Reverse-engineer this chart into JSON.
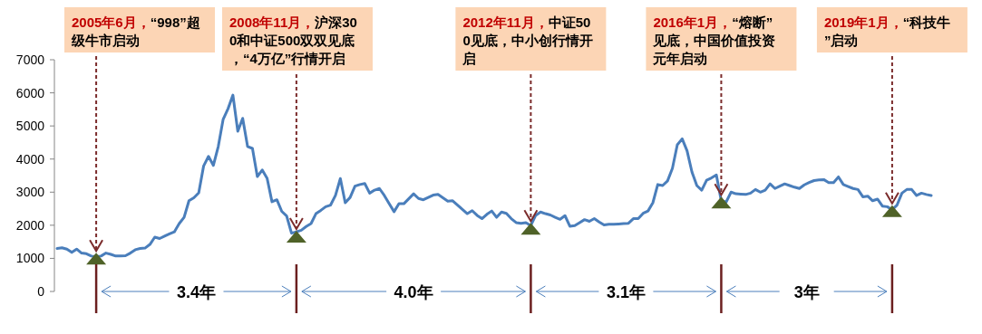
{
  "chart_data": {
    "type": "line",
    "ylim": [
      0,
      7000
    ],
    "yticks": [
      0,
      1000,
      2000,
      3000,
      4000,
      5000,
      6000,
      7000
    ],
    "tick_labels": "y",
    "grid": false,
    "categories": [
      null,
      null,
      null,
      null,
      null,
      null,
      null,
      null,
      null,
      null,
      null,
      null,
      null,
      null,
      null,
      null,
      null,
      null,
      null,
      null,
      null,
      null,
      null,
      null,
      null,
      null,
      null,
      null,
      null,
      null,
      null,
      null,
      null,
      null,
      null,
      null,
      null,
      null,
      null,
      null,
      null,
      null,
      null,
      null,
      null,
      null,
      null,
      null,
      null,
      null,
      null,
      null,
      null,
      null,
      null,
      null,
      null,
      null,
      null,
      null,
      null,
      null,
      null,
      null,
      null,
      null,
      null,
      null,
      null,
      null,
      null,
      null,
      null,
      null,
      null,
      null,
      null,
      null,
      null,
      null,
      null,
      null,
      null,
      null,
      null,
      null,
      null,
      null,
      null,
      null,
      null,
      null,
      null,
      null,
      null,
      null,
      null,
      null,
      null,
      null,
      null,
      null,
      null,
      null,
      null,
      null,
      null,
      null,
      null,
      null,
      null,
      null,
      null,
      null,
      null,
      null,
      null,
      null,
      null,
      null,
      null,
      null,
      null,
      null,
      null,
      null,
      null,
      null,
      null,
      null,
      null,
      null,
      null,
      null,
      null,
      null,
      null,
      null,
      null,
      null,
      null,
      null,
      null,
      null,
      null,
      null,
      null,
      null,
      null,
      null,
      null,
      null,
      null,
      null,
      null,
      null,
      null,
      null,
      null,
      null,
      null,
      null,
      null,
      null,
      null,
      null,
      null,
      null,
      null,
      null,
      null,
      null,
      null,
      null,
      null,
      null,
      null,
      null,
      null,
      null
    ],
    "series": [
      {
        "color": "#4a7ebb",
        "values": [
          1300,
          1320,
          1280,
          1180,
          1280,
          1160,
          1140,
          1070,
          1050,
          1070,
          1160,
          1120,
          1070,
          1070,
          1080,
          1160,
          1260,
          1300,
          1310,
          1420,
          1640,
          1600,
          1670,
          1740,
          1800,
          2050,
          2240,
          2740,
          2830,
          2980,
          3790,
          4080,
          3810,
          4380,
          5200,
          5520,
          5930,
          4840,
          5230,
          4380,
          4320,
          3470,
          3670,
          3420,
          2710,
          2770,
          2420,
          2280,
          1760,
          1800,
          1850,
          1960,
          2050,
          2350,
          2450,
          2560,
          2610,
          2900,
          3410,
          2680,
          2840,
          3180,
          3230,
          3260,
          2970,
          3060,
          3110,
          2900,
          2650,
          2410,
          2650,
          2650,
          2800,
          2950,
          2810,
          2770,
          2840,
          2910,
          2930,
          2830,
          2730,
          2740,
          2610,
          2480,
          2350,
          2440,
          2300,
          2200,
          2330,
          2430,
          2240,
          2400,
          2360,
          2200,
          2080,
          2060,
          2080,
          1990,
          2300,
          2400,
          2350,
          2310,
          2240,
          2180,
          2290,
          1970,
          1990,
          2080,
          2170,
          2120,
          2200,
          2100,
          2010,
          2030,
          2030,
          2040,
          2050,
          2060,
          2200,
          2200,
          2360,
          2430,
          2680,
          3230,
          3200,
          3340,
          3720,
          4430,
          4610,
          4250,
          3610,
          3200,
          3060,
          3360,
          3430,
          3520,
          2740,
          2700,
          3000,
          2950,
          2940,
          2930,
          2970,
          3080,
          3000,
          3060,
          3250,
          3110,
          3180,
          3250,
          3200,
          3150,
          3110,
          3220,
          3290,
          3350,
          3370,
          3380,
          3290,
          3290,
          3460,
          3230,
          3170,
          3110,
          3080,
          2860,
          2880,
          2740,
          2790,
          2580,
          2560,
          2470,
          2610,
          2970,
          3080,
          3080,
          2900,
          2970,
          2930,
          2900
        ]
      },
      {
        "type": "scatter",
        "marker": "triangle",
        "color": "#4f6228",
        "values": [
          null,
          null,
          null,
          null,
          null,
          null,
          null,
          null,
          980,
          null,
          null,
          null,
          null,
          null,
          null,
          null,
          null,
          null,
          null,
          null,
          null,
          null,
          null,
          null,
          null,
          null,
          null,
          null,
          null,
          null,
          null,
          null,
          null,
          null,
          null,
          null,
          null,
          null,
          null,
          null,
          null,
          null,
          null,
          null,
          null,
          null,
          null,
          null,
          null,
          1640,
          null,
          null,
          null,
          null,
          null,
          null,
          null,
          null,
          null,
          null,
          null,
          null,
          null,
          null,
          null,
          null,
          null,
          null,
          null,
          null,
          null,
          null,
          null,
          null,
          null,
          null,
          null,
          null,
          null,
          null,
          null,
          null,
          null,
          null,
          null,
          null,
          null,
          null,
          null,
          null,
          null,
          null,
          null,
          null,
          null,
          null,
          null,
          1880,
          null,
          null,
          null,
          null,
          null,
          null,
          null,
          null,
          null,
          null,
          null,
          null,
          null,
          null,
          null,
          null,
          null,
          null,
          null,
          null,
          null,
          null,
          null,
          null,
          null,
          null,
          null,
          null,
          null,
          null,
          null,
          null,
          null,
          null,
          null,
          null,
          null,
          null,
          2670,
          null,
          null,
          null,
          null,
          null,
          null,
          null,
          null,
          null,
          null,
          null,
          null,
          null,
          null,
          null,
          null,
          null,
          null,
          null,
          null,
          null,
          null,
          null,
          null,
          null,
          null,
          null,
          null,
          null,
          null,
          null,
          null,
          null,
          null,
          2410,
          null,
          null,
          null,
          null,
          null,
          null,
          null,
          null
        ]
      }
    ],
    "annotations": [
      "2005年6月，“998”超级牛市启动",
      "2008年11月，沪深300和中证500双双见底，“4万亿”行情开启",
      "2012年11月，中证500见底，中小创行情开启",
      "2016年1月，“熔断”见底，中国价值投资元年启动",
      "2019年1月，“科技牛”启动",
      "3.4年",
      "4.0年",
      "3.1年",
      "3年"
    ]
  }
}
